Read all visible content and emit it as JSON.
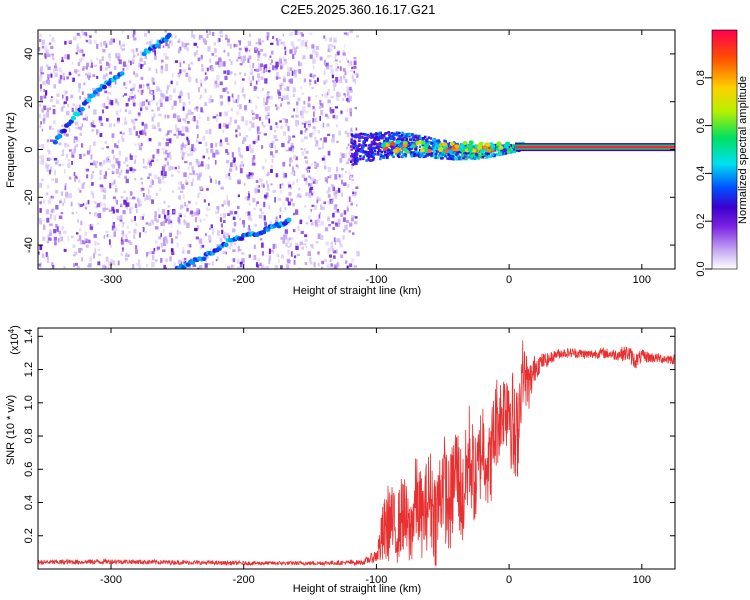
{
  "title": "C2E5.2025.360.16.17.G21",
  "chart_data": [
    {
      "type": "heatmap",
      "name": "spectrogram",
      "xlabel": "Height of straight line (km)",
      "ylabel": "Frequency (Hz)",
      "xlim": [
        -355,
        125
      ],
      "ylim": [
        -50,
        50
      ],
      "xticks": [
        -300,
        -200,
        -100,
        0,
        100
      ],
      "yticks": [
        -40,
        -20,
        0,
        20,
        40
      ],
      "colorbar": {
        "label": "Normalized spectral amplitude",
        "range": [
          0,
          1
        ],
        "ticks": [
          0.0,
          0.2,
          0.4,
          0.6,
          0.8
        ],
        "colors": [
          "#ffffff",
          "#c4a6f2",
          "#7a20e0",
          "#3a00d0",
          "#0050ff",
          "#00e0f0",
          "#00e060",
          "#b8f000",
          "#ffd000",
          "#ff5000",
          "#ff0050"
        ]
      },
      "traces": [
        {
          "name": "rising-track",
          "x": [
            -342,
            -330,
            -315,
            -300,
            -290
          ],
          "y": [
            3,
            12,
            22,
            29,
            33
          ]
        },
        {
          "name": "upper-track",
          "x": [
            -275,
            -262,
            -255
          ],
          "y": [
            40,
            45,
            48
          ]
        },
        {
          "name": "falling-track",
          "x": [
            -250,
            -230,
            -210,
            -190,
            -170,
            -165
          ],
          "y": [
            -50,
            -45,
            -38,
            -35,
            -31,
            -30
          ]
        },
        {
          "name": "carrier-line",
          "x": [
            5,
            125
          ],
          "y": [
            1,
            1
          ]
        }
      ],
      "noise_region_x": [
        -355,
        -115
      ],
      "carrier_cluster_x": [
        -120,
        10
      ]
    },
    {
      "type": "line",
      "name": "snr",
      "xlabel": "Height of straight line (km)",
      "ylabel": "SNR (10 * v/v)",
      "scale_note": "(x10",
      "scale_exp": "4",
      "scale_close": ")",
      "xlim": [
        -355,
        125
      ],
      "ylim": [
        0,
        1.45
      ],
      "xticks": [
        -300,
        -200,
        -100,
        0,
        100
      ],
      "yticks": [
        0.2,
        0.4,
        0.6,
        0.8,
        1.0,
        1.2,
        1.4
      ],
      "series": [
        {
          "name": "SNR",
          "color": "#e83030",
          "x": [
            -355,
            -300,
            -200,
            -150,
            -110,
            -100,
            -95,
            -90,
            -85,
            -80,
            -75,
            -70,
            -65,
            -60,
            -55,
            -50,
            -45,
            -40,
            -35,
            -30,
            -25,
            -20,
            -15,
            -10,
            -5,
            0,
            5,
            10,
            15,
            20,
            25,
            30,
            35,
            40,
            50,
            60,
            70,
            80,
            90,
            95,
            100,
            110,
            125
          ],
          "y": [
            0.04,
            0.045,
            0.035,
            0.035,
            0.04,
            0.08,
            0.2,
            0.3,
            0.22,
            0.35,
            0.2,
            0.42,
            0.3,
            0.45,
            0.3,
            0.55,
            0.35,
            0.62,
            0.4,
            0.7,
            0.5,
            0.78,
            0.6,
            0.88,
            0.95,
            1.05,
            0.7,
            1.2,
            1.1,
            1.22,
            1.25,
            1.26,
            1.29,
            1.3,
            1.3,
            1.29,
            1.3,
            1.29,
            1.3,
            1.25,
            1.28,
            1.27,
            1.26
          ],
          "noise_amplitude": [
            0.015,
            0.015,
            0.012,
            0.012,
            0.015,
            0.04,
            0.2,
            0.25,
            0.2,
            0.25,
            0.22,
            0.28,
            0.25,
            0.3,
            0.3,
            0.32,
            0.3,
            0.32,
            0.3,
            0.32,
            0.28,
            0.3,
            0.28,
            0.3,
            0.22,
            0.35,
            0.35,
            0.2,
            0.15,
            0.08,
            0.05,
            0.04,
            0.03,
            0.03,
            0.03,
            0.03,
            0.03,
            0.035,
            0.05,
            0.05,
            0.04,
            0.03,
            0.03
          ]
        }
      ]
    }
  ]
}
